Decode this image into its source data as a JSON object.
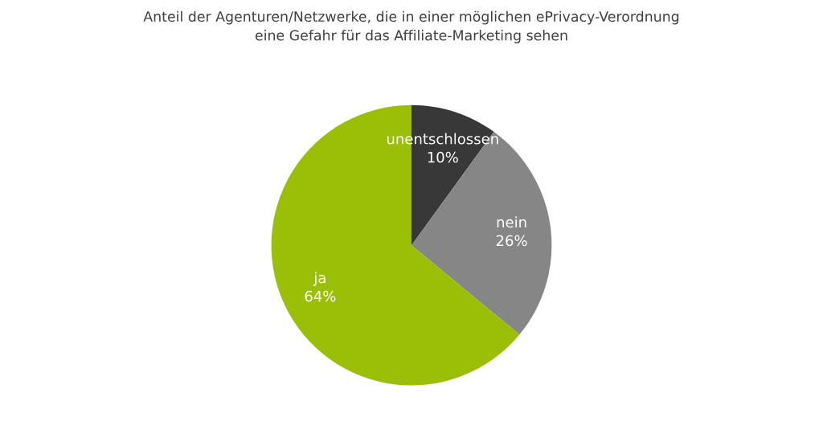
{
  "chart_data": {
    "type": "pie",
    "title": "Anteil der Agenturen/Netzwerke, die in einer möglichen ePrivacy-Verordnung\neine Gefahr für das Affiliate-Marketing sehen",
    "categories": [
      "unentschlossen",
      "nein",
      "ja"
    ],
    "values": [
      10,
      26,
      64
    ],
    "value_labels": [
      "10%",
      "26%",
      "64%"
    ],
    "colors": [
      "#383838",
      "#868686",
      "#9bbe06"
    ]
  }
}
